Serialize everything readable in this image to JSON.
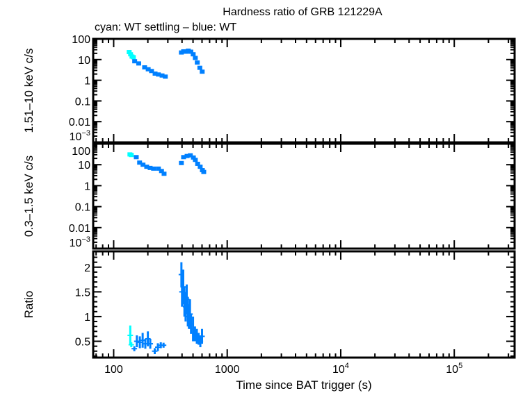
{
  "chart_data": {
    "type": "scatter",
    "title": "Hardness ratio of GRB 121229A",
    "subtitle": "cyan: WT settling – blue: WT",
    "xlabel": "Time since BAT trigger (s)",
    "xscale": "log",
    "xlim": [
      66,
      340000
    ],
    "xticks": [
      {
        "value": 100,
        "label": "100"
      },
      {
        "value": 1000,
        "label": "1000"
      },
      {
        "value": 10000,
        "label": "10",
        "exp": "4"
      },
      {
        "value": 100000,
        "label": "10",
        "exp": "5"
      }
    ],
    "colors": {
      "wt_settling": "#00ffff",
      "wt": "#0080ff"
    },
    "panels": [
      {
        "ylabel": "1.51–10 keV c/s",
        "yscale": "log",
        "ylim": [
          0.001,
          100
        ],
        "yticks": [
          {
            "value": 100,
            "label": "100"
          },
          {
            "value": 10,
            "label": "10"
          },
          {
            "value": 1,
            "label": "1"
          },
          {
            "value": 0.1,
            "label": "0.1"
          },
          {
            "value": 0.01,
            "label": "0.01"
          },
          {
            "value": 0.001,
            "label": "10",
            "exp": "−3"
          }
        ],
        "series": [
          {
            "mode": "WT settling",
            "points": [
              [
                136,
                23
              ],
              [
                140,
                18
              ],
              [
                144,
                14
              ],
              [
                148,
                13
              ]
            ]
          },
          {
            "mode": "WT",
            "points": [
              [
                152,
                8.3
              ],
              [
                165,
                6.5
              ],
              [
                186,
                4.2
              ],
              [
                200,
                3.4
              ],
              [
                214,
                2.8
              ],
              [
                230,
                2.1
              ],
              [
                246,
                1.9
              ],
              [
                265,
                1.7
              ],
              [
                283,
                1.5
              ],
              [
                392,
                22
              ],
              [
                410,
                25
              ],
              [
                430,
                24
              ],
              [
                451,
                27
              ],
              [
                475,
                24
              ],
              [
                498,
                18
              ],
              [
                520,
                12
              ],
              [
                541,
                7.2
              ],
              [
                570,
                4.0
              ],
              [
                598,
                2.6
              ]
            ]
          }
        ]
      },
      {
        "ylabel": "0.3–1.5 keV c/s",
        "yscale": "log",
        "ylim": [
          0.001,
          100
        ],
        "yticks": [
          {
            "value": 100,
            "label": "100"
          },
          {
            "value": 10,
            "label": "10"
          },
          {
            "value": 1,
            "label": "1"
          },
          {
            "value": 0.1,
            "label": "0.1"
          },
          {
            "value": 0.01,
            "label": "0.01"
          },
          {
            "value": 0.001,
            "label": "10",
            "exp": "−3"
          }
        ],
        "series": [
          {
            "mode": "WT settling",
            "points": [
              [
                138,
                31
              ],
              [
                142,
                29
              ]
            ]
          },
          {
            "mode": "WT",
            "points": [
              [
                157,
                23
              ],
              [
                168,
                12.6
              ],
              [
                180,
                10
              ],
              [
                194,
                8
              ],
              [
                208,
                7
              ],
              [
                223,
                6.5
              ],
              [
                246,
                6.5
              ],
              [
                262,
                5
              ],
              [
                276,
                3.7
              ],
              [
                392,
                12
              ],
              [
                410,
                23
              ],
              [
                440,
                26
              ],
              [
                470,
                28
              ],
              [
                500,
                22
              ],
              [
                520,
                17
              ],
              [
                545,
                11
              ],
              [
                574,
                8
              ],
              [
                600,
                5.5
              ],
              [
                617,
                4.5
              ]
            ]
          }
        ]
      },
      {
        "ylabel": "Ratio",
        "yscale": "linear",
        "ylim": [
          0.17,
          2.32
        ],
        "yticks": [
          {
            "value": 2,
            "label": "2"
          },
          {
            "value": 1.5,
            "label": "1.5"
          },
          {
            "value": 1,
            "label": "1"
          },
          {
            "value": 0.5,
            "label": "0.5"
          }
        ],
        "series": [
          {
            "mode": "WT settling",
            "points": [
              [
                140,
                0.62,
                0.2
              ],
              [
                143,
                0.43,
                0.05
              ]
            ]
          },
          {
            "mode": "WT",
            "points": [
              [
                152,
                0.35,
                0.05
              ],
              [
                160,
                0.5,
                0.12
              ],
              [
                170,
                0.48,
                0.12
              ],
              [
                180,
                0.52,
                0.15
              ],
              [
                190,
                0.45,
                0.1
              ],
              [
                200,
                0.55,
                0.15
              ],
              [
                210,
                0.45,
                0.1
              ],
              [
                230,
                0.3,
                0.06
              ],
              [
                245,
                0.38,
                0.08
              ],
              [
                260,
                0.42,
                0.06
              ],
              [
                275,
                0.42,
                0.05
              ],
              [
                395,
                1.85,
                0.25
              ],
              [
                400,
                1.5,
                0.3
              ],
              [
                410,
                1.6,
                0.35
              ],
              [
                420,
                1.3,
                0.3
              ],
              [
                430,
                1.2,
                0.3
              ],
              [
                440,
                1.35,
                0.3
              ],
              [
                450,
                1.1,
                0.3
              ],
              [
                460,
                1.0,
                0.25
              ],
              [
                470,
                1.05,
                0.3
              ],
              [
                480,
                0.85,
                0.2
              ],
              [
                500,
                0.75,
                0.25
              ],
              [
                520,
                0.65,
                0.15
              ],
              [
                540,
                0.6,
                0.15
              ],
              [
                560,
                0.55,
                0.12
              ],
              [
                580,
                0.5,
                0.12
              ],
              [
                600,
                0.6,
                0.15
              ]
            ]
          }
        ]
      }
    ]
  }
}
